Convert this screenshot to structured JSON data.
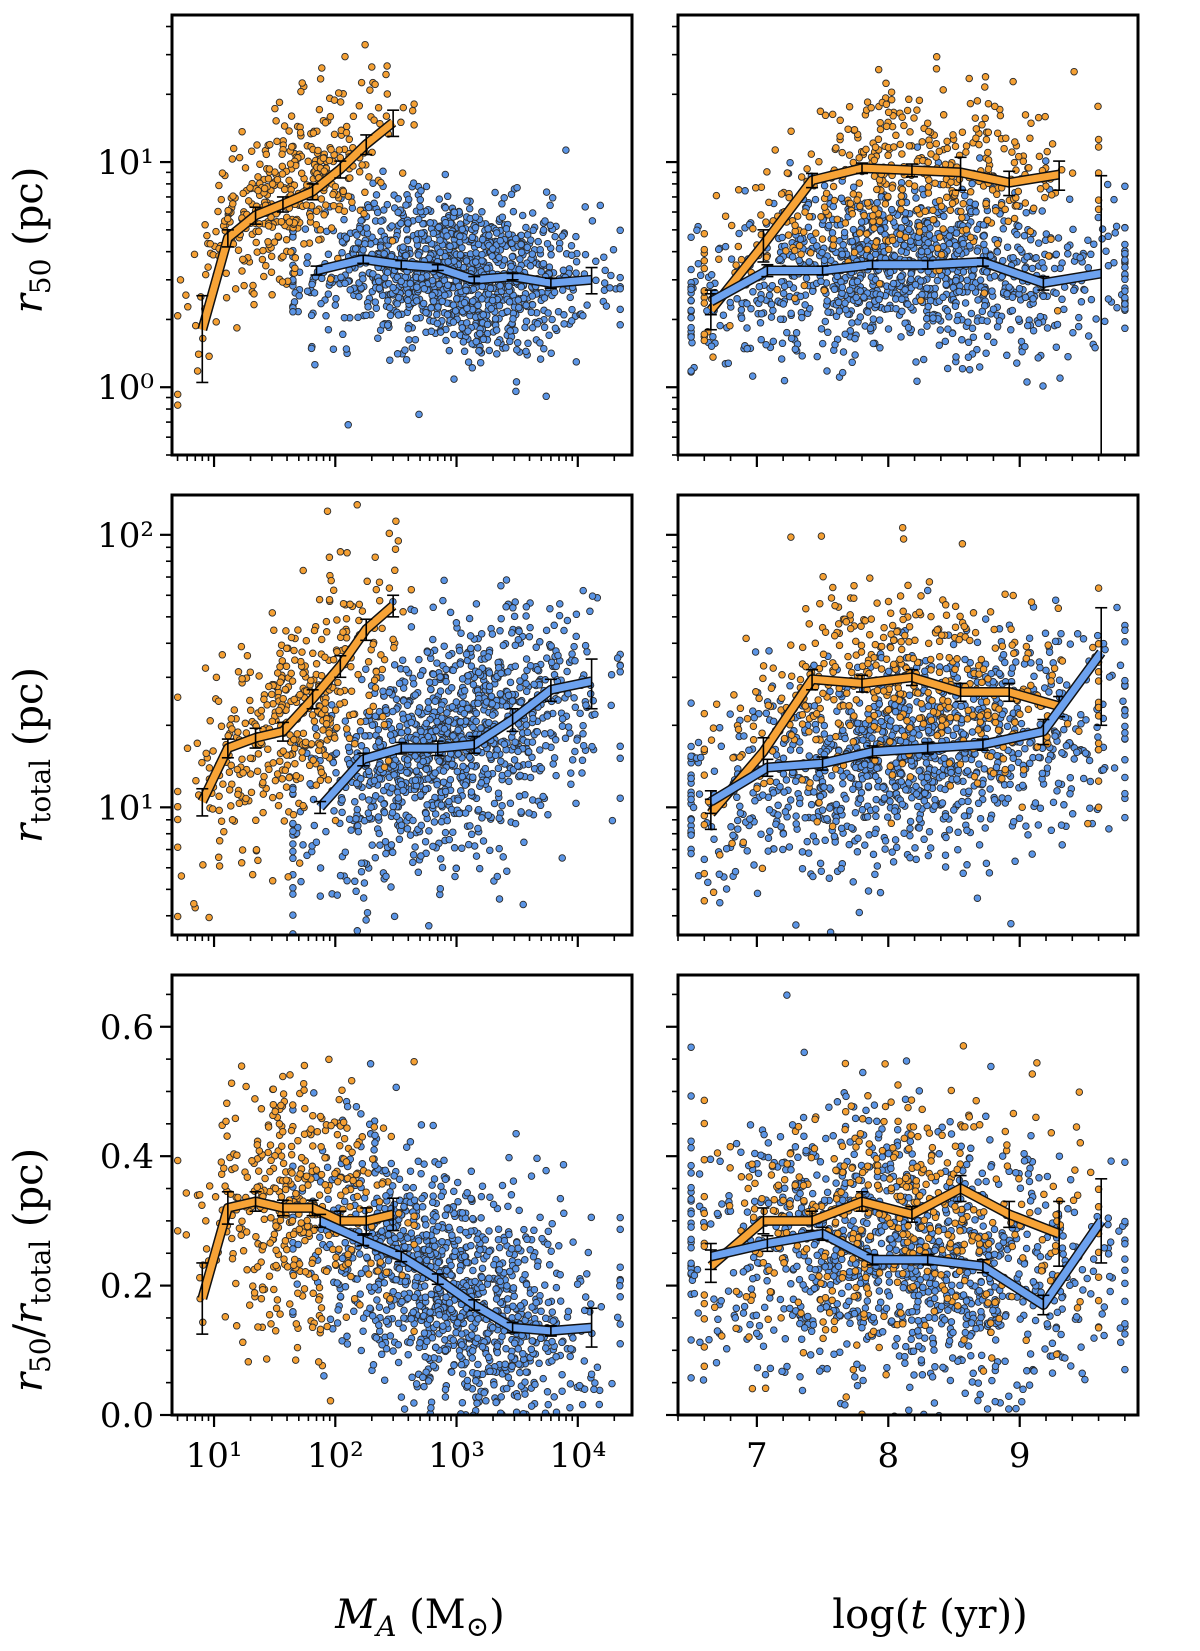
{
  "figure": {
    "colors": {
      "orange_fill": "#f5a033",
      "blue_fill": "#5b95e6",
      "marker_edge": "#2a2a2a",
      "orange_line": "#f7a336",
      "blue_line": "#6da2ef",
      "errorbar": "#000000"
    },
    "labels": {
      "y_top": "r50 (pc)",
      "y_mid": "rtotal (pc)",
      "y_bot": "r50/rtotal (pc)",
      "x_left": "MA (M⊙)",
      "x_right": "log(t (yr))"
    }
  },
  "chart_data": [
    {
      "id": "top-left",
      "type": "scatter",
      "xlabel": "M_A (M_sun)",
      "ylabel": "r_50 (pc)",
      "xscale": "log",
      "yscale": "log",
      "xlim": [
        4.5,
        28000
      ],
      "ylim": [
        0.5,
        45
      ],
      "xticks": [
        10,
        100,
        1000,
        10000
      ],
      "xtick_labels": [
        "",
        "",
        "",
        ""
      ],
      "yticks": [
        1,
        10
      ],
      "ytick_labels": [
        "10⁰",
        "10¹"
      ],
      "orange_cloud": {
        "n": 420,
        "x_log_range": [
          0.75,
          2.55
        ],
        "y_trend": [
          [
            0.85,
            0.3
          ],
          [
            1.0,
            0.68
          ],
          [
            1.5,
            0.84
          ],
          [
            2.0,
            0.97
          ],
          [
            2.5,
            1.18
          ]
        ],
        "y_scatter": 0.18
      },
      "blue_cloud": {
        "n": 1200,
        "x_log_range": [
          1.7,
          4.25
        ],
        "y_trend": [
          [
            1.8,
            0.5
          ],
          [
            2.2,
            0.56
          ],
          [
            2.8,
            0.53
          ],
          [
            3.2,
            0.47
          ],
          [
            4.1,
            0.47
          ]
        ],
        "y_scatter": 0.17
      },
      "orange_line": {
        "x": [
          8,
          13,
          22,
          37,
          65,
          110,
          180,
          300
        ],
        "y": [
          1.8,
          4.6,
          5.8,
          6.5,
          7.4,
          9.3,
          12,
          15
        ],
        "yerr": [
          0.75,
          0.4,
          0.5,
          0.5,
          0.6,
          0.8,
          1.2,
          2.0
        ]
      },
      "blue_line": {
        "x": [
          70,
          170,
          350,
          700,
          1400,
          2900,
          6000,
          13000
        ],
        "y": [
          3.3,
          3.7,
          3.5,
          3.4,
          3.0,
          3.1,
          2.9,
          3.0
        ],
        "yerr": [
          0.15,
          0.15,
          0.15,
          0.1,
          0.1,
          0.1,
          0.15,
          0.4
        ]
      }
    },
    {
      "id": "top-right",
      "type": "scatter",
      "xlabel": "log(t (yr))",
      "ylabel": "r_50 (pc)",
      "xscale": "linear",
      "yscale": "log",
      "xlim": [
        6.4,
        9.9
      ],
      "ylim": [
        0.5,
        45
      ],
      "xticks": [
        7,
        8,
        9
      ],
      "xtick_labels": [
        "",
        "",
        ""
      ],
      "yticks": [
        1,
        10
      ],
      "ytick_labels": [
        "",
        ""
      ],
      "orange_cloud": {
        "n": 450,
        "x_range": [
          6.6,
          9.6
        ],
        "y_trend": [
          [
            6.6,
            0.4
          ],
          [
            7.0,
            0.65
          ],
          [
            7.5,
            0.88
          ],
          [
            8.2,
            0.97
          ],
          [
            9.3,
            0.92
          ]
        ],
        "y_scatter": 0.17
      },
      "blue_cloud": {
        "n": 1150,
        "x_range": [
          6.5,
          9.8
        ],
        "y_trend": [
          [
            6.6,
            0.38
          ],
          [
            7.2,
            0.5
          ],
          [
            8.2,
            0.55
          ],
          [
            9.2,
            0.48
          ],
          [
            9.8,
            0.5
          ]
        ],
        "y_scatter": 0.18
      },
      "orange_line": {
        "x": [
          6.65,
          7.05,
          7.42,
          7.8,
          8.18,
          8.55,
          8.92,
          9.3
        ],
        "y": [
          2.2,
          4.3,
          8.3,
          9.4,
          9.2,
          9.0,
          8.1,
          8.8
        ],
        "yerr": [
          0.4,
          0.7,
          0.6,
          0.5,
          0.6,
          1.5,
          1.0,
          1.3
        ]
      },
      "blue_line": {
        "x": [
          6.65,
          7.08,
          7.5,
          7.88,
          8.3,
          8.72,
          9.18,
          9.62
        ],
        "y": [
          2.4,
          3.3,
          3.3,
          3.5,
          3.5,
          3.6,
          2.9,
          3.2
        ],
        "yerr": [
          0.3,
          0.2,
          0.15,
          0.15,
          0.15,
          0.15,
          0.2,
          5.5
        ]
      }
    },
    {
      "id": "mid-left",
      "type": "scatter",
      "xlabel": "M_A (M_sun)",
      "ylabel": "r_total (pc)",
      "xscale": "log",
      "yscale": "log",
      "xlim": [
        4.5,
        28000
      ],
      "ylim": [
        3.4,
        140
      ],
      "xticks": [
        10,
        100,
        1000,
        10000
      ],
      "xtick_labels": [
        "",
        "",
        "",
        ""
      ],
      "yticks": [
        10,
        100
      ],
      "ytick_labels": [
        "10¹",
        "10²"
      ],
      "orange_cloud": {
        "n": 420,
        "x_log_range": [
          0.75,
          2.55
        ],
        "y_trend": [
          [
            0.85,
            1.0
          ],
          [
            1.2,
            1.2
          ],
          [
            1.6,
            1.3
          ],
          [
            2.0,
            1.45
          ],
          [
            2.5,
            1.75
          ]
        ],
        "y_scatter": 0.2
      },
      "blue_cloud": {
        "n": 1200,
        "x_log_range": [
          1.7,
          4.25
        ],
        "y_trend": [
          [
            1.8,
            1.0
          ],
          [
            2.3,
            1.13
          ],
          [
            2.8,
            1.2
          ],
          [
            3.3,
            1.3
          ],
          [
            4.1,
            1.45
          ]
        ],
        "y_scatter": 0.2
      },
      "orange_line": {
        "x": [
          8,
          13,
          22,
          37,
          65,
          110,
          180,
          300
        ],
        "y": [
          10.5,
          16.5,
          18,
          19,
          25,
          33,
          45,
          55
        ],
        "yerr": [
          1.2,
          1.3,
          1.5,
          1.5,
          2.0,
          3.0,
          4.0,
          5.0
        ]
      },
      "blue_line": {
        "x": [
          75,
          170,
          350,
          700,
          1400,
          2900,
          6000,
          13000
        ],
        "y": [
          10,
          15,
          16.5,
          16.5,
          17,
          21,
          27,
          29
        ],
        "yerr": [
          0.5,
          0.8,
          0.8,
          1.0,
          1.2,
          2.0,
          2.5,
          6.0
        ]
      }
    },
    {
      "id": "mid-right",
      "type": "scatter",
      "xlabel": "log(t (yr))",
      "ylabel": "r_total (pc)",
      "xscale": "linear",
      "yscale": "log",
      "xlim": [
        6.4,
        9.9
      ],
      "ylim": [
        3.4,
        140
      ],
      "xticks": [
        7,
        8,
        9
      ],
      "xtick_labels": [
        "",
        "",
        ""
      ],
      "yticks": [
        10,
        100
      ],
      "ytick_labels": [
        "",
        ""
      ],
      "orange_cloud": {
        "n": 450,
        "x_range": [
          6.6,
          9.6
        ],
        "y_trend": [
          [
            6.6,
            1.0
          ],
          [
            7.0,
            1.25
          ],
          [
            7.5,
            1.45
          ],
          [
            8.2,
            1.5
          ],
          [
            9.3,
            1.4
          ]
        ],
        "y_scatter": 0.19
      },
      "blue_cloud": {
        "n": 1150,
        "x_range": [
          6.5,
          9.8
        ],
        "y_trend": [
          [
            6.6,
            0.95
          ],
          [
            7.2,
            1.12
          ],
          [
            8.2,
            1.2
          ],
          [
            9.2,
            1.28
          ],
          [
            9.8,
            1.3
          ]
        ],
        "y_scatter": 0.2
      },
      "orange_line": {
        "x": [
          6.65,
          7.05,
          7.42,
          7.8,
          8.18,
          8.55,
          8.92,
          9.3
        ],
        "y": [
          9.5,
          16,
          29.5,
          28.5,
          30,
          26.5,
          26.5,
          23.5
        ],
        "yerr": [
          1.2,
          2.0,
          2.5,
          2.0,
          2.0,
          2.0,
          2.0,
          2.0
        ]
      },
      "blue_line": {
        "x": [
          6.65,
          7.08,
          7.5,
          7.88,
          8.3,
          8.72,
          9.18,
          9.62
        ],
        "y": [
          10.5,
          14,
          14.5,
          16,
          16.5,
          17,
          19,
          37
        ],
        "yerr": [
          1.0,
          1.0,
          0.8,
          0.8,
          0.8,
          0.8,
          2.0,
          17
        ]
      }
    },
    {
      "id": "bottom-left",
      "type": "scatter",
      "xlabel": "M_A (M_sun)",
      "ylabel": "r_50/r_total (pc)",
      "xscale": "log",
      "yscale": "linear",
      "xlim": [
        4.5,
        28000
      ],
      "ylim": [
        0.0,
        0.68
      ],
      "xticks": [
        10,
        100,
        1000,
        10000
      ],
      "xtick_labels": [
        "10¹",
        "10²",
        "10³",
        "10⁴"
      ],
      "yticks": [
        0.0,
        0.2,
        0.4,
        0.6
      ],
      "ytick_labels": [
        "0.0",
        "0.2",
        "0.4",
        "0.6"
      ],
      "orange_cloud": {
        "n": 420,
        "x_log_range": [
          0.75,
          2.55
        ],
        "y_trend": [
          [
            0.85,
            0.28
          ],
          [
            1.2,
            0.33
          ],
          [
            1.8,
            0.32
          ],
          [
            2.5,
            0.3
          ]
        ],
        "y_scatter": 0.1
      },
      "blue_cloud": {
        "n": 1200,
        "x_log_range": [
          1.7,
          4.25
        ],
        "y_trend": [
          [
            1.8,
            0.3
          ],
          [
            2.5,
            0.24
          ],
          [
            3.2,
            0.16
          ],
          [
            4.1,
            0.13
          ]
        ],
        "y_scatter": 0.09
      },
      "orange_line": {
        "x": [
          8,
          13,
          22,
          37,
          65,
          110,
          180,
          300
        ],
        "y": [
          0.18,
          0.32,
          0.33,
          0.32,
          0.32,
          0.3,
          0.3,
          0.31
        ],
        "yerr": [
          0.055,
          0.025,
          0.015,
          0.012,
          0.012,
          0.015,
          0.02,
          0.025
        ]
      },
      "blue_line": {
        "x": [
          75,
          170,
          350,
          700,
          1400,
          2900,
          6000,
          13000
        ],
        "y": [
          0.3,
          0.27,
          0.245,
          0.21,
          0.17,
          0.135,
          0.13,
          0.135
        ],
        "yerr": [
          0.01,
          0.008,
          0.008,
          0.008,
          0.008,
          0.008,
          0.008,
          0.03
        ]
      }
    },
    {
      "id": "bottom-right",
      "type": "scatter",
      "xlabel": "log(t (yr))",
      "ylabel": "r_50/r_total (pc)",
      "xscale": "linear",
      "yscale": "linear",
      "xlim": [
        6.4,
        9.9
      ],
      "ylim": [
        0.0,
        0.68
      ],
      "xticks": [
        7,
        8,
        9
      ],
      "xtick_labels": [
        "7",
        "8",
        "9"
      ],
      "yticks": [
        0.0,
        0.2,
        0.4,
        0.6
      ],
      "ytick_labels": [
        "",
        "",
        "",
        ""
      ],
      "orange_cloud": {
        "n": 450,
        "x_range": [
          6.6,
          9.6
        ],
        "y_trend": [
          [
            6.6,
            0.25
          ],
          [
            7.5,
            0.3
          ],
          [
            8.2,
            0.32
          ],
          [
            9.3,
            0.28
          ]
        ],
        "y_scatter": 0.1
      },
      "blue_cloud": {
        "n": 1150,
        "x_range": [
          6.5,
          9.8
        ],
        "y_trend": [
          [
            6.6,
            0.25
          ],
          [
            7.5,
            0.27
          ],
          [
            8.2,
            0.23
          ],
          [
            9.2,
            0.2
          ],
          [
            9.8,
            0.22
          ]
        ],
        "y_scatter": 0.1
      },
      "orange_line": {
        "x": [
          6.65,
          7.05,
          7.42,
          7.8,
          8.18,
          8.55,
          8.92,
          9.3
        ],
        "y": [
          0.23,
          0.3,
          0.3,
          0.33,
          0.31,
          0.35,
          0.31,
          0.28
        ],
        "yerr": [
          0.025,
          0.02,
          0.015,
          0.015,
          0.012,
          0.02,
          0.02,
          0.05
        ]
      },
      "blue_line": {
        "x": [
          6.65,
          7.08,
          7.5,
          7.88,
          8.3,
          8.72,
          9.18,
          9.62
        ],
        "y": [
          0.245,
          0.265,
          0.28,
          0.24,
          0.24,
          0.23,
          0.17,
          0.3
        ],
        "yerr": [
          0.02,
          0.012,
          0.01,
          0.008,
          0.008,
          0.01,
          0.015,
          0.065
        ]
      }
    }
  ]
}
